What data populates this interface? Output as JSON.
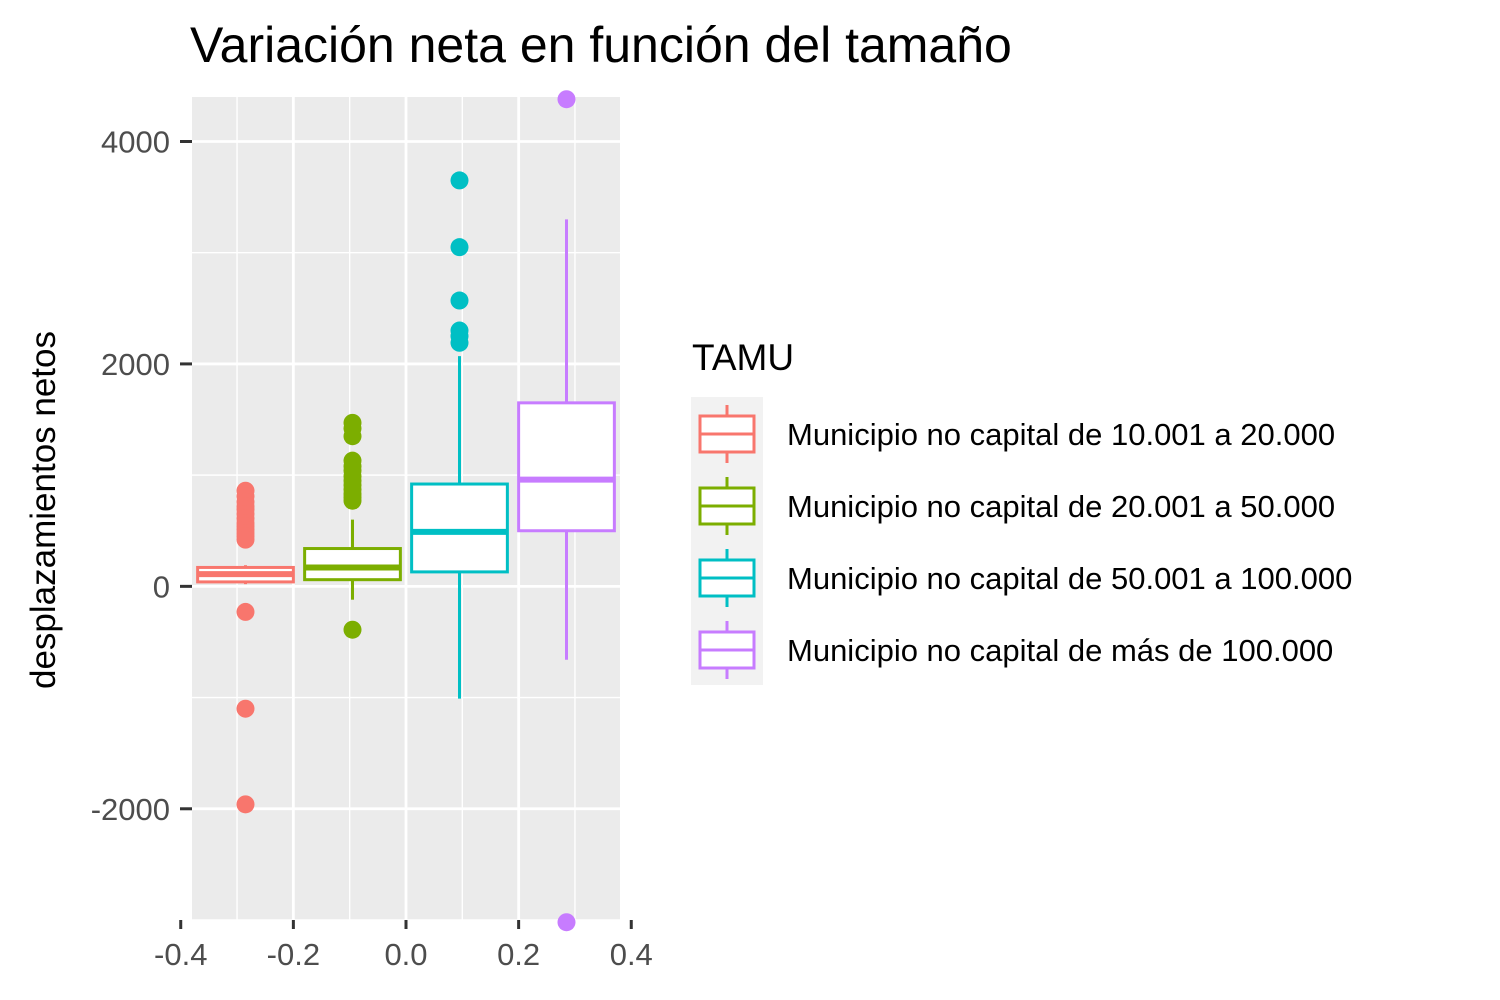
{
  "chart_data": {
    "type": "boxplot",
    "title": "Variación neta en función del tamaño",
    "xlabel": "",
    "ylabel": "desplazamientos netos",
    "xlim": [
      -0.38,
      0.38
    ],
    "ylim": [
      -3000,
      4400
    ],
    "x_ticks": [
      -0.4,
      -0.2,
      0.0,
      0.2,
      0.4
    ],
    "x_tick_labels": [
      "-0.4",
      "-0.2",
      "0.0",
      "0.2",
      "0.4"
    ],
    "y_ticks": [
      -2000,
      0,
      2000,
      4000
    ],
    "y_tick_labels": [
      "-2000",
      "0",
      "2000",
      "4000"
    ],
    "grid": true,
    "panel_background": "#ebebeb",
    "legend": {
      "title": "TAMU",
      "position": "right"
    },
    "series": [
      {
        "name": "Municipio no capital de 10.001 a 20.000",
        "color": "#f8766d",
        "x_center": -0.285,
        "box_width": 0.17,
        "whisker_low": 20,
        "q1": 40,
        "median": 110,
        "q3": 170,
        "whisker_high": 190,
        "outliers": [
          860,
          810,
          760,
          720,
          690,
          650,
          610,
          570,
          540,
          510,
          480,
          450,
          420,
          -230,
          -1100,
          -1960
        ]
      },
      {
        "name": "Municipio no capital de 20.001 a 50.000",
        "color": "#7cae00",
        "x_center": -0.095,
        "box_width": 0.17,
        "whisker_low": -120,
        "q1": 60,
        "median": 170,
        "q3": 340,
        "whisker_high": 600,
        "outliers": [
          1470,
          1420,
          1350,
          1130,
          1080,
          1040,
          990,
          950,
          910,
          870,
          830,
          800,
          770,
          -390
        ]
      },
      {
        "name": "Municipio no capital de 50.001 a 100.000",
        "color": "#00bfc4",
        "x_center": 0.095,
        "box_width": 0.17,
        "whisker_low": -1010,
        "q1": 130,
        "median": 490,
        "q3": 920,
        "whisker_high": 2070,
        "outliers": [
          3650,
          3050,
          2570,
          2300,
          2250,
          2190
        ]
      },
      {
        "name": "Municipio no capital  de más de 100.000",
        "color": "#c77cff",
        "x_center": 0.285,
        "box_width": 0.17,
        "whisker_low": -660,
        "q1": 500,
        "median": 960,
        "q3": 1650,
        "whisker_high": 3300,
        "outliers": [
          4380,
          -3020
        ]
      }
    ]
  }
}
